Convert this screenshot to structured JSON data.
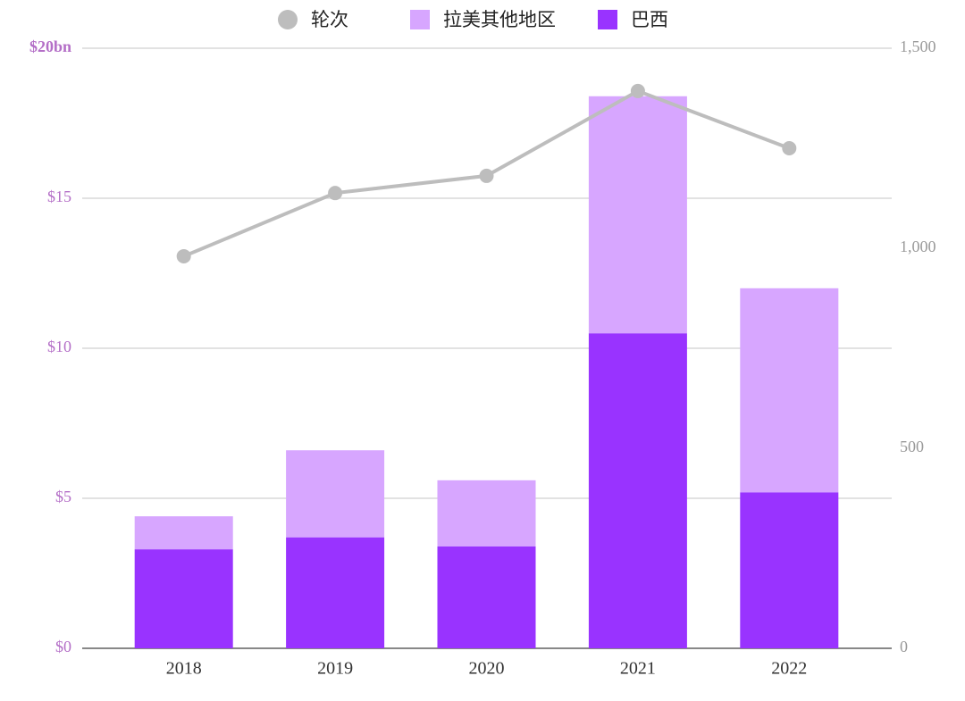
{
  "chart_data": {
    "type": "bar",
    "stacked": true,
    "categories": [
      "2018",
      "2019",
      "2020",
      "2021",
      "2022"
    ],
    "series": [
      {
        "name": "轮次",
        "type": "line",
        "axis": "y2",
        "color": "#bdbdbd",
        "values": [
          980,
          1138,
          1181,
          1393,
          1250
        ]
      },
      {
        "name": "拉美其他地区",
        "type": "bar",
        "color": "#d7a6ff",
        "values": [
          1.1,
          2.9,
          2.2,
          7.9,
          6.8
        ]
      },
      {
        "name": "巴西",
        "type": "bar",
        "color": "#9933ff",
        "values": [
          3.3,
          3.7,
          3.4,
          10.5,
          5.2
        ]
      }
    ],
    "ylim": [
      0,
      20
    ],
    "yticks": [
      {
        "value": 0,
        "label": "$0"
      },
      {
        "value": 5,
        "label": "$5"
      },
      {
        "value": 10,
        "label": "$10"
      },
      {
        "value": 15,
        "label": "$15"
      },
      {
        "value": 20,
        "label": "$20bn"
      }
    ],
    "y2lim": [
      0,
      1500
    ],
    "y2ticks": [
      0,
      500,
      {
        "value": 1000,
        "label": "1,000"
      },
      {
        "value": 1500,
        "label": "1,500"
      }
    ],
    "grid": true
  }
}
